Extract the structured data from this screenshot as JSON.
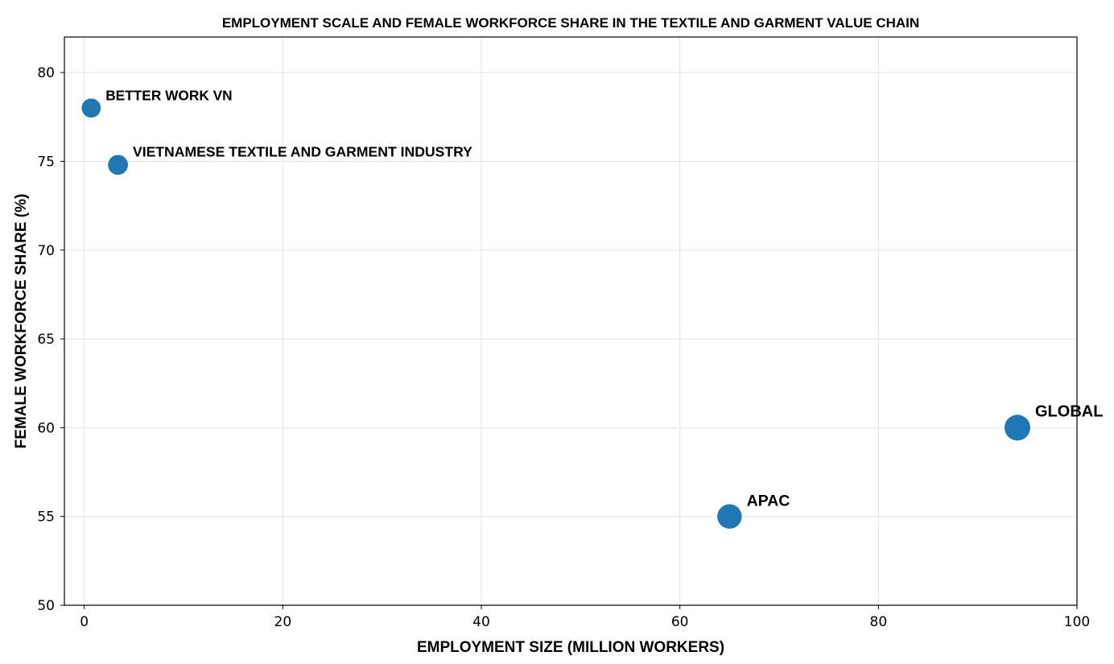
{
  "chart_data": {
    "type": "scatter",
    "title": "EMPLOYMENT SCALE AND FEMALE WORKFORCE SHARE IN THE TEXTILE AND GARMENT VALUE CHAIN",
    "xlabel": "EMPLOYMENT SIZE (MILLION WORKERS)",
    "ylabel": "FEMALE WORKFORCE SHARE (%)",
    "xlim": [
      -2,
      100
    ],
    "ylim": [
      50,
      82
    ],
    "xticks": [
      0,
      20,
      40,
      60,
      80,
      100
    ],
    "yticks": [
      50,
      55,
      60,
      65,
      70,
      75,
      80
    ],
    "grid": true,
    "marker_color": "#1f77b4",
    "points": [
      {
        "label": "BETTER WORK VN",
        "x": 0.7,
        "y": 78.0
      },
      {
        "label": "VIETNAMESE TEXTILE AND GARMENT INDUSTRY",
        "x": 3.4,
        "y": 74.8
      },
      {
        "label": "APAC",
        "x": 65.0,
        "y": 55.0
      },
      {
        "label": "GLOBAL",
        "x": 94.0,
        "y": 60.0
      }
    ]
  }
}
